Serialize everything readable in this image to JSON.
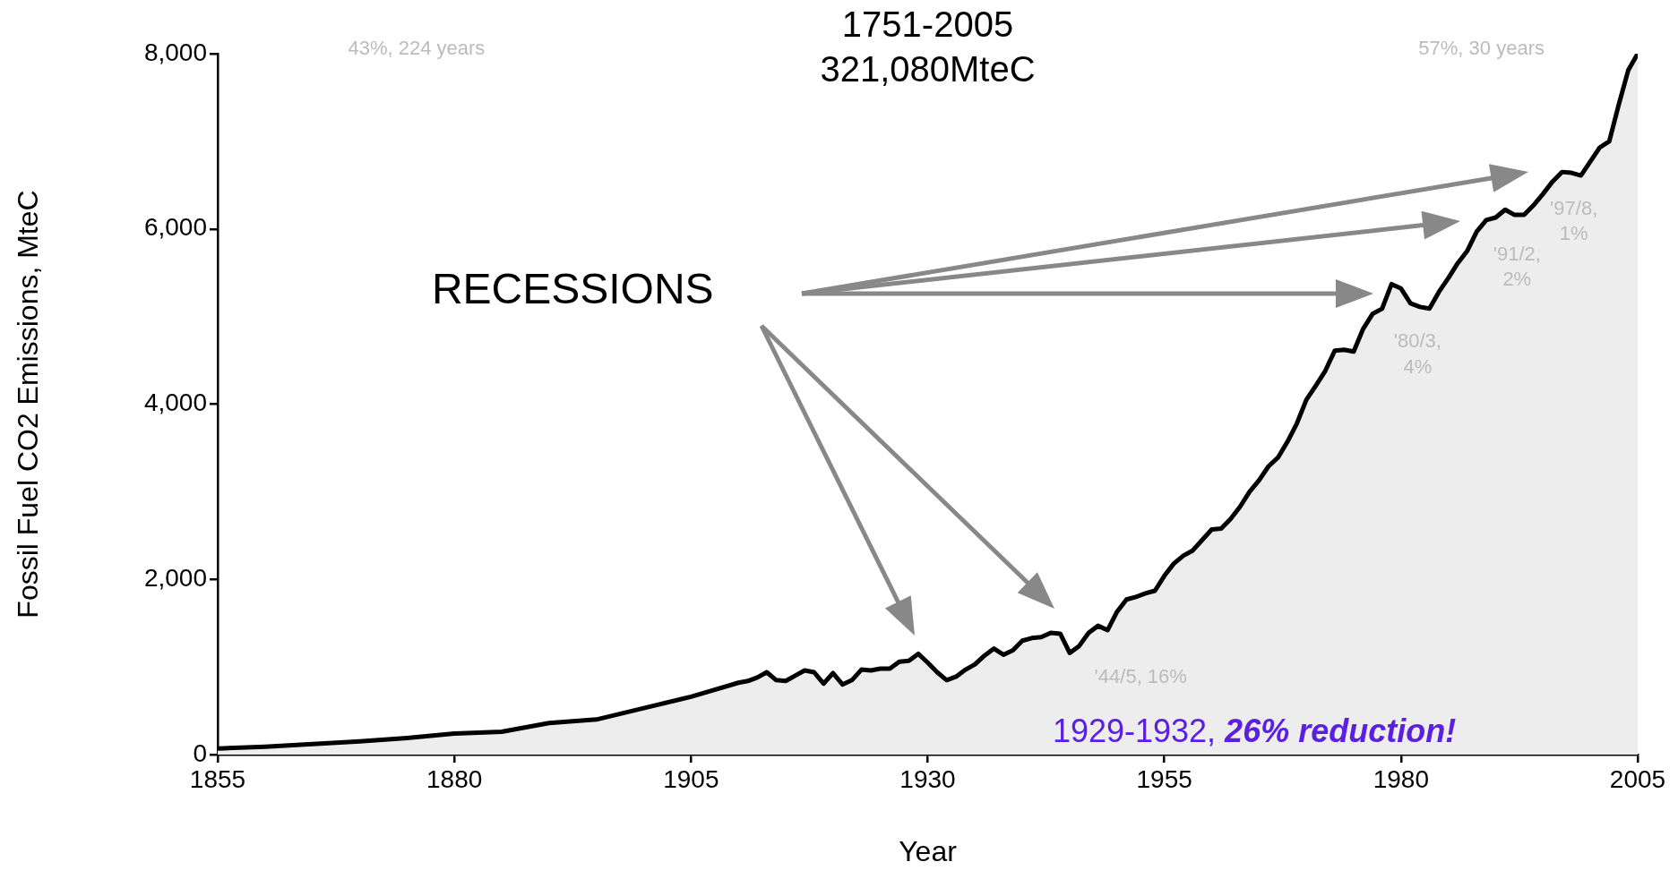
{
  "chart_data": {
    "type": "area",
    "title": "1751-2005",
    "subtitle": "321,080MteC",
    "xlabel": "Year",
    "ylabel": "Fossil Fuel CO2 Emissions, MteC",
    "annotations": [
      "43%, 224 years",
      "57%, 30 years",
      "RECESSIONS",
      "'44/5, 16%",
      "'80/3,\n4%",
      "'91/2,\n2%",
      "'97/8,\n1%",
      "1929-1932, 26% reduction!"
    ],
    "x": [
      1855,
      1860,
      1865,
      1870,
      1875,
      1880,
      1885,
      1890,
      1895,
      1900,
      1905,
      1910,
      1911,
      1912,
      1913,
      1914,
      1915,
      1916,
      1917,
      1918,
      1919,
      1920,
      1921,
      1922,
      1923,
      1924,
      1925,
      1926,
      1927,
      1928,
      1929,
      1930,
      1931,
      1932,
      1933,
      1934,
      1935,
      1936,
      1937,
      1938,
      1939,
      1940,
      1941,
      1942,
      1943,
      1944,
      1945,
      1946,
      1947,
      1948,
      1949,
      1950,
      1951,
      1952,
      1953,
      1954,
      1955,
      1956,
      1957,
      1958,
      1959,
      1960,
      1961,
      1962,
      1963,
      1964,
      1965,
      1966,
      1967,
      1968,
      1969,
      1970,
      1971,
      1972,
      1973,
      1974,
      1975,
      1976,
      1977,
      1978,
      1979,
      1980,
      1981,
      1982,
      1983,
      1984,
      1985,
      1986,
      1987,
      1988,
      1989,
      1990,
      1991,
      1992,
      1993,
      1994,
      1995,
      1996,
      1997,
      1998,
      1999,
      2000,
      2001,
      2002,
      2003,
      2004,
      2005
    ],
    "series": [
      {
        "color": "#000000",
        "values": [
          70,
          90,
          120,
          150,
          190,
          240,
          260,
          360,
          400,
          530,
          660,
          820,
          840,
          880,
          940,
          850,
          840,
          900,
          960,
          940,
          810,
          930,
          800,
          850,
          970,
          960,
          980,
          980,
          1060,
          1070,
          1150,
          1050,
          940,
          850,
          890,
          970,
          1030,
          1130,
          1210,
          1140,
          1190,
          1300,
          1330,
          1340,
          1390,
          1380,
          1160,
          1240,
          1390,
          1470,
          1420,
          1630,
          1770,
          1800,
          1840,
          1870,
          2040,
          2180,
          2270,
          2330,
          2450,
          2570,
          2580,
          2690,
          2830,
          3000,
          3130,
          3290,
          3390,
          3570,
          3780,
          4050,
          4210,
          4380,
          4610,
          4620,
          4600,
          4860,
          5030,
          5090,
          5370,
          5320,
          5150,
          5110,
          5090,
          5280,
          5440,
          5610,
          5750,
          5970,
          6100,
          6130,
          6220,
          6160,
          6160,
          6270,
          6400,
          6540,
          6650,
          6640,
          6610,
          6770,
          6930,
          7000,
          7420,
          7810,
          8000
        ]
      }
    ],
    "xlim": [
      1855,
      2005
    ],
    "xticks": [
      1855,
      1880,
      1905,
      1930,
      1955,
      1980,
      2005
    ],
    "ylim": [
      0,
      8000
    ],
    "yticks": [
      0,
      {
        "value": 2000,
        "label": "2,000"
      },
      {
        "value": 4000,
        "label": "4,000"
      },
      {
        "value": 6000,
        "label": "6,000"
      },
      {
        "value": 8000,
        "label": "8,000"
      }
    ],
    "legend": false,
    "grid": false
  }
}
